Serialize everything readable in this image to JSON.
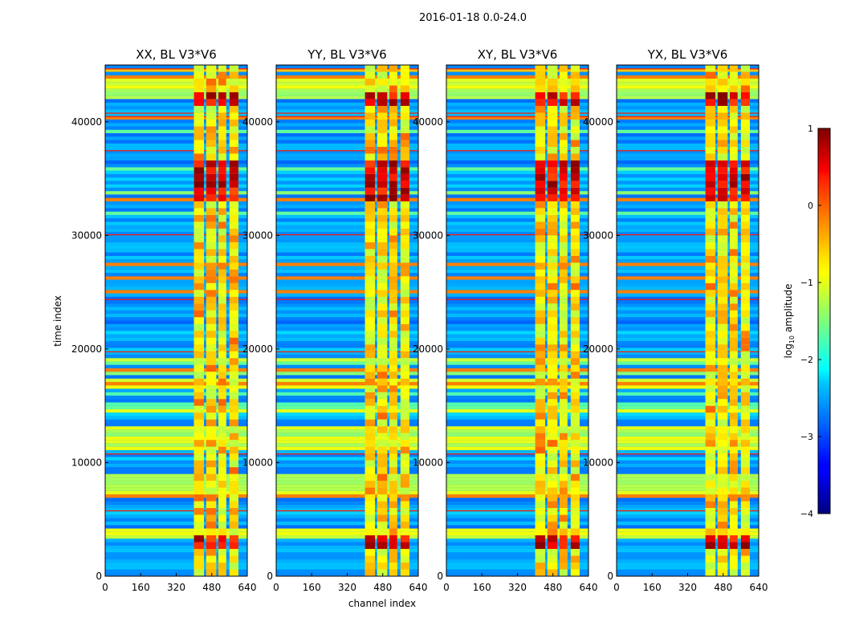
{
  "figure": {
    "suptitle": "2016-01-18 0.0-24.0",
    "xlabel": "channel index",
    "ylabel": "time index"
  },
  "chart_data": {
    "type": "heatmap",
    "colormap": "jet",
    "panels": [
      {
        "title": "XX, BL V3*V6"
      },
      {
        "title": "YY, BL V3*V6"
      },
      {
        "title": "XY, BL V3*V6"
      },
      {
        "title": "YX, BL V3*V6"
      }
    ],
    "x_range": [
      0,
      640
    ],
    "y_range": [
      0,
      45000
    ],
    "x_ticks": [
      0,
      160,
      320,
      480,
      640
    ],
    "x_tick_labels": [
      "0",
      "160",
      "320",
      "480",
      "640"
    ],
    "y_ticks": [
      0,
      10000,
      20000,
      30000,
      40000
    ],
    "y_tick_labels": [
      "0",
      "10000",
      "20000",
      "30000",
      "40000"
    ],
    "colorbar": {
      "label": "log10 amplitude",
      "label_main": "log",
      "label_sub": "10",
      "label_rest": " amplitude",
      "range": [
        -4,
        1
      ],
      "ticks": [
        1,
        0,
        -1,
        -2,
        -3,
        -4
      ],
      "tick_labels": [
        "1",
        "0",
        "−1",
        "−2",
        "−3",
        "−4"
      ]
    },
    "rfi_bands_channels": [
      [
        400,
        445
      ],
      [
        455,
        500
      ],
      [
        510,
        545
      ],
      [
        560,
        600
      ]
    ]
  }
}
